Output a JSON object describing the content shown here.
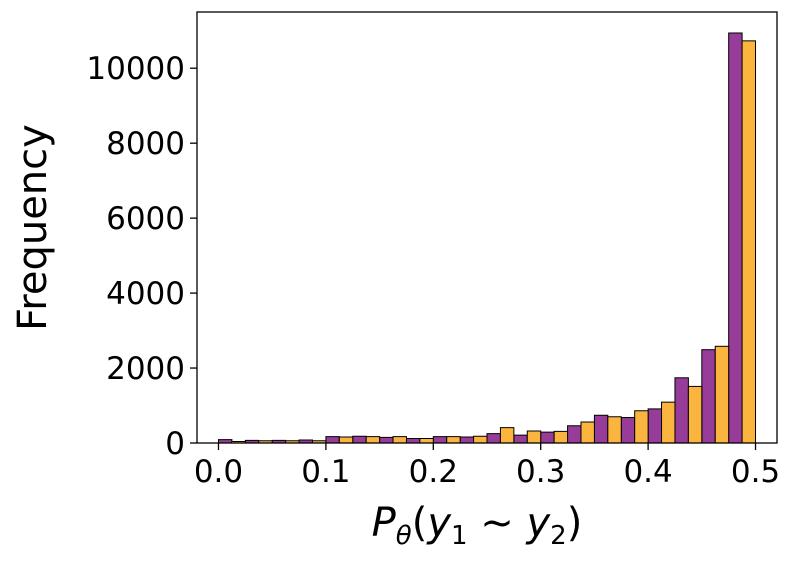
{
  "chart_data": {
    "type": "bar",
    "title": "",
    "xlabel_parts": {
      "base": "P",
      "base_sub": "θ",
      "open": "(",
      "y1": "y",
      "y1_sub": "1",
      "op": " ~ ",
      "y2": "y",
      "y2_sub": "2",
      "close": ")"
    },
    "ylabel": "Frequency",
    "xlim": [
      -0.02,
      0.52
    ],
    "ylim": [
      0,
      11500
    ],
    "x_ticks": [
      0.0,
      0.1,
      0.2,
      0.3,
      0.4,
      0.5
    ],
    "x_tick_labels": [
      "0.0",
      "0.1",
      "0.2",
      "0.3",
      "0.4",
      "0.5"
    ],
    "y_ticks": [
      0,
      2000,
      4000,
      6000,
      8000,
      10000
    ],
    "y_tick_labels": [
      "0",
      "2000",
      "4000",
      "6000",
      "8000",
      "10000"
    ],
    "bin_width": 0.025,
    "bin_starts": [
      0.0,
      0.025,
      0.05,
      0.075,
      0.1,
      0.125,
      0.15,
      0.175,
      0.2,
      0.225,
      0.25,
      0.275,
      0.3,
      0.325,
      0.35,
      0.375,
      0.4,
      0.425,
      0.45,
      0.475
    ],
    "grid": false,
    "legend": "none",
    "series": [
      {
        "color": "#973c99",
        "values": [
          90,
          70,
          70,
          80,
          170,
          180,
          150,
          120,
          170,
          160,
          250,
          210,
          290,
          460,
          740,
          680,
          910,
          1740,
          2490,
          10940
        ]
      },
      {
        "color": "#fbb53f",
        "values": [
          40,
          60,
          60,
          60,
          160,
          170,
          170,
          120,
          170,
          180,
          410,
          320,
          310,
          560,
          700,
          860,
          1090,
          1510,
          2580,
          10730
        ]
      }
    ]
  }
}
